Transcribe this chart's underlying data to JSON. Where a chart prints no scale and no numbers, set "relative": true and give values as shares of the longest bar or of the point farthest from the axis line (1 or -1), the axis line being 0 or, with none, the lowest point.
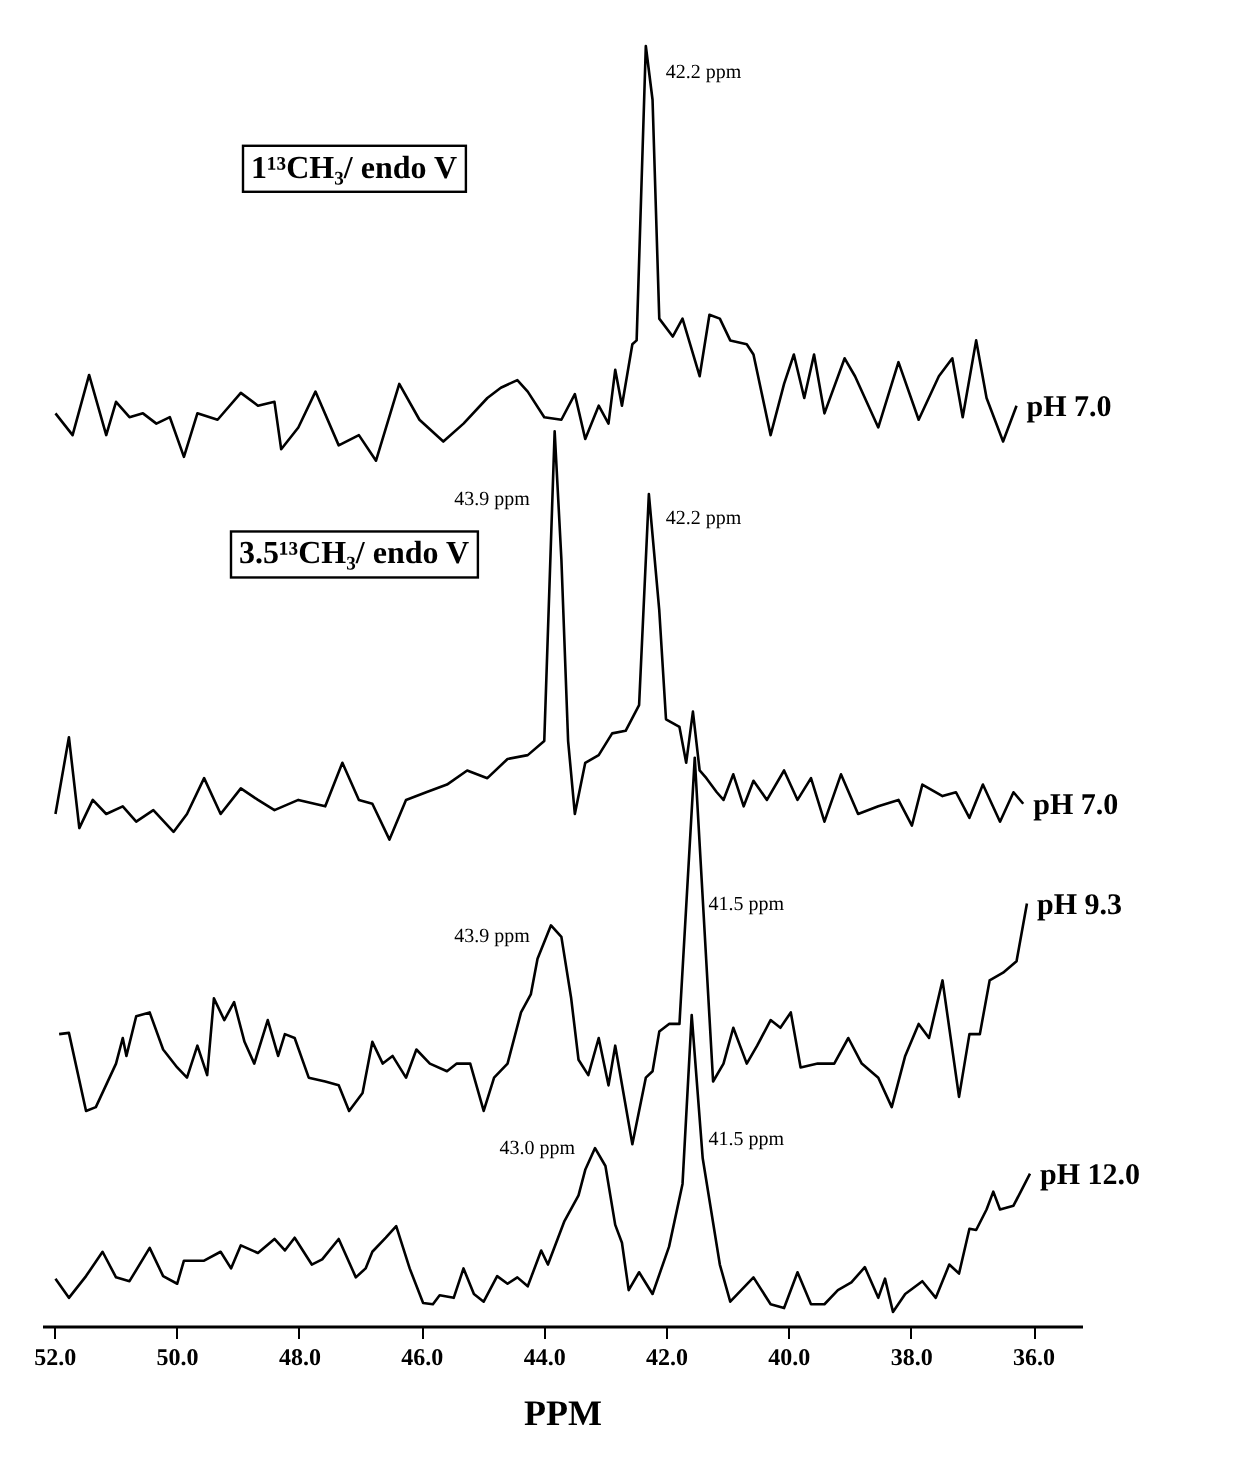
{
  "chart_data": {
    "type": "line",
    "relative": true,
    "xlabel": "PPM",
    "xlim": [
      52.2,
      35.2
    ],
    "xticks": [
      {
        "value": 52,
        "label": "52.0"
      },
      {
        "value": 50,
        "label": "50.0"
      },
      {
        "value": 48,
        "label": "48.0"
      },
      {
        "value": 46,
        "label": "46.0"
      },
      {
        "value": 44,
        "label": "44.0"
      },
      {
        "value": 42,
        "label": "42.0"
      },
      {
        "value": 40,
        "label": "40.0"
      },
      {
        "value": 38,
        "label": "38.0"
      },
      {
        "value": 36,
        "label": "36.0"
      }
    ],
    "annotations": [
      "1¹³CH₃/ endo V",
      "3.5¹³CH₃/ endo V",
      {
        "text": "42.2 ppm",
        "x": 42.2,
        "y": 0.98
      },
      {
        "text": "43.9 ppm",
        "x": 43.9,
        "y": 0.646
      },
      {
        "text": "42.2 ppm",
        "x": 42.2,
        "y": 0.631
      },
      {
        "text": "43.9 ppm",
        "x": 43.9,
        "y": 0.305
      },
      {
        "text": "41.5 ppm",
        "x": 41.5,
        "y": 0.33
      },
      {
        "text": "43.0 ppm",
        "x": 43.16,
        "y": 0.139
      },
      {
        "text": "41.5 ppm",
        "x": 41.5,
        "y": 0.146
      }
    ],
    "series": [
      {
        "name": "pH 7.0",
        "color": "#000000",
        "x": [
          51.98,
          51.7,
          51.43,
          51.15,
          50.99,
          50.77,
          50.55,
          50.33,
          50.11,
          49.88,
          49.66,
          49.33,
          48.95,
          48.67,
          48.4,
          48.29,
          48.01,
          47.73,
          47.35,
          47.02,
          46.74,
          46.36,
          46.03,
          45.64,
          45.31,
          44.92,
          44.7,
          44.43,
          44.26,
          43.99,
          43.71,
          43.49,
          43.32,
          43.1,
          42.94,
          42.83,
          42.72,
          42.55,
          42.48,
          42.33,
          42.22,
          42.11,
          41.89,
          41.73,
          41.45,
          41.29,
          41.12,
          40.95,
          40.68,
          40.57,
          40.29,
          40.07,
          39.91,
          39.74,
          39.58,
          39.41,
          39.08,
          38.91,
          38.53,
          38.2,
          37.87,
          37.54,
          37.32,
          37.15,
          36.93,
          36.76,
          36.49,
          36.27
        ],
        "values": [
          0.713,
          0.696,
          0.743,
          0.696,
          0.722,
          0.71,
          0.713,
          0.705,
          0.71,
          0.679,
          0.713,
          0.708,
          0.729,
          0.719,
          0.722,
          0.685,
          0.702,
          0.73,
          0.688,
          0.696,
          0.676,
          0.736,
          0.708,
          0.691,
          0.705,
          0.725,
          0.733,
          0.739,
          0.73,
          0.71,
          0.708,
          0.728,
          0.693,
          0.719,
          0.705,
          0.747,
          0.719,
          0.767,
          0.77,
          1.0,
          0.958,
          0.787,
          0.773,
          0.787,
          0.742,
          0.79,
          0.787,
          0.77,
          0.767,
          0.759,
          0.696,
          0.736,
          0.759,
          0.725,
          0.759,
          0.713,
          0.756,
          0.742,
          0.702,
          0.753,
          0.708,
          0.742,
          0.756,
          0.71,
          0.77,
          0.725,
          0.691,
          0.719
        ]
      },
      {
        "name": "pH 7.0",
        "color": "#000000",
        "x": [
          51.98,
          51.76,
          51.59,
          51.37,
          51.15,
          50.88,
          50.66,
          50.38,
          50.05,
          49.83,
          49.55,
          49.28,
          48.95,
          48.67,
          48.4,
          48.01,
          47.57,
          47.29,
          47.02,
          46.8,
          46.52,
          46.25,
          45.92,
          45.58,
          45.25,
          44.92,
          44.59,
          44.26,
          43.99,
          43.82,
          43.71,
          43.6,
          43.49,
          43.32,
          43.1,
          42.88,
          42.66,
          42.44,
          42.28,
          42.11,
          42.0,
          41.78,
          41.67,
          41.56,
          41.45,
          41.34,
          41.17,
          41.06,
          40.9,
          40.73,
          40.57,
          40.35,
          40.07,
          39.85,
          39.63,
          39.41,
          39.14,
          38.86,
          38.53,
          38.2,
          37.98,
          37.81,
          37.48,
          37.26,
          37.04,
          36.82,
          36.54,
          36.32,
          36.16
        ],
        "values": [
          0.4,
          0.46,
          0.389,
          0.411,
          0.4,
          0.406,
          0.394,
          0.403,
          0.386,
          0.4,
          0.428,
          0.4,
          0.42,
          0.411,
          0.403,
          0.411,
          0.406,
          0.44,
          0.411,
          0.408,
          0.38,
          0.411,
          0.417,
          0.423,
          0.434,
          0.428,
          0.443,
          0.446,
          0.457,
          0.699,
          0.599,
          0.457,
          0.4,
          0.44,
          0.446,
          0.463,
          0.465,
          0.485,
          0.65,
          0.559,
          0.474,
          0.468,
          0.44,
          0.48,
          0.434,
          0.428,
          0.417,
          0.411,
          0.431,
          0.406,
          0.426,
          0.411,
          0.434,
          0.411,
          0.428,
          0.394,
          0.431,
          0.4,
          0.406,
          0.411,
          0.391,
          0.423,
          0.414,
          0.417,
          0.397,
          0.423,
          0.394,
          0.417,
          0.408
        ]
      },
      {
        "name": "pH 9.3",
        "color": "#000000",
        "x": [
          51.92,
          51.76,
          51.48,
          51.32,
          50.99,
          50.88,
          50.82,
          50.66,
          50.44,
          50.22,
          49.99,
          49.83,
          49.66,
          49.5,
          49.39,
          49.22,
          49.06,
          48.89,
          48.73,
          48.51,
          48.34,
          48.23,
          48.07,
          47.84,
          47.57,
          47.35,
          47.18,
          46.96,
          46.8,
          46.63,
          46.47,
          46.25,
          46.08,
          45.86,
          45.58,
          45.42,
          45.2,
          44.98,
          44.81,
          44.59,
          44.37,
          44.21,
          44.1,
          43.88,
          43.71,
          43.55,
          43.43,
          43.27,
          43.1,
          42.94,
          42.83,
          42.55,
          42.33,
          42.22,
          42.11,
          41.95,
          41.78,
          41.53,
          41.23,
          41.06,
          40.9,
          40.68,
          40.51,
          40.29,
          40.13,
          39.96,
          39.8,
          39.52,
          39.25,
          39.02,
          38.8,
          38.53,
          38.31,
          38.09,
          37.87,
          37.7,
          37.48,
          37.21,
          37.04,
          36.87,
          36.71,
          36.49,
          36.27,
          36.1
        ],
        "values": [
          0.228,
          0.229,
          0.168,
          0.171,
          0.205,
          0.225,
          0.211,
          0.242,
          0.245,
          0.216,
          0.202,
          0.194,
          0.219,
          0.196,
          0.256,
          0.239,
          0.253,
          0.222,
          0.205,
          0.239,
          0.211,
          0.228,
          0.225,
          0.194,
          0.191,
          0.188,
          0.168,
          0.182,
          0.222,
          0.205,
          0.211,
          0.194,
          0.216,
          0.205,
          0.199,
          0.205,
          0.205,
          0.168,
          0.194,
          0.205,
          0.245,
          0.259,
          0.287,
          0.313,
          0.304,
          0.256,
          0.208,
          0.196,
          0.225,
          0.188,
          0.219,
          0.142,
          0.194,
          0.199,
          0.23,
          0.236,
          0.236,
          0.444,
          0.191,
          0.205,
          0.233,
          0.205,
          0.219,
          0.239,
          0.233,
          0.245,
          0.202,
          0.205,
          0.205,
          0.225,
          0.205,
          0.194,
          0.171,
          0.211,
          0.236,
          0.225,
          0.27,
          0.179,
          0.228,
          0.228,
          0.27,
          0.276,
          0.285,
          0.33
        ]
      },
      {
        "name": "pH 12.0",
        "color": "#000000",
        "x": [
          51.98,
          51.76,
          51.48,
          51.21,
          50.99,
          50.77,
          50.44,
          50.22,
          49.99,
          49.88,
          49.55,
          49.28,
          49.11,
          48.95,
          48.67,
          48.4,
          48.23,
          48.07,
          47.79,
          47.62,
          47.35,
          47.07,
          46.91,
          46.8,
          46.58,
          46.41,
          46.19,
          45.97,
          45.81,
          45.7,
          45.47,
          45.31,
          45.14,
          44.98,
          44.76,
          44.59,
          44.43,
          44.26,
          44.04,
          43.93,
          43.66,
          43.43,
          43.32,
          43.16,
          42.99,
          42.83,
          42.72,
          42.61,
          42.44,
          42.22,
          41.95,
          41.73,
          41.58,
          41.4,
          41.12,
          40.95,
          40.57,
          40.29,
          40.07,
          39.85,
          39.63,
          39.41,
          39.19,
          38.97,
          38.75,
          38.53,
          38.42,
          38.29,
          38.09,
          37.81,
          37.59,
          37.37,
          37.21,
          37.04,
          36.93,
          36.76,
          36.65,
          36.54,
          36.32,
          36.05
        ],
        "values": [
          0.037,
          0.022,
          0.039,
          0.058,
          0.038,
          0.035,
          0.061,
          0.039,
          0.033,
          0.051,
          0.051,
          0.058,
          0.045,
          0.063,
          0.057,
          0.068,
          0.059,
          0.069,
          0.048,
          0.052,
          0.068,
          0.038,
          0.045,
          0.058,
          0.069,
          0.078,
          0.045,
          0.018,
          0.017,
          0.024,
          0.022,
          0.045,
          0.025,
          0.019,
          0.039,
          0.033,
          0.038,
          0.031,
          0.059,
          0.048,
          0.082,
          0.102,
          0.122,
          0.139,
          0.125,
          0.079,
          0.065,
          0.028,
          0.042,
          0.025,
          0.062,
          0.111,
          0.243,
          0.131,
          0.048,
          0.019,
          0.038,
          0.017,
          0.014,
          0.042,
          0.017,
          0.017,
          0.028,
          0.034,
          0.046,
          0.022,
          0.037,
          0.011,
          0.025,
          0.035,
          0.022,
          0.048,
          0.041,
          0.076,
          0.075,
          0.091,
          0.105,
          0.091,
          0.094,
          0.119
        ]
      }
    ]
  }
}
